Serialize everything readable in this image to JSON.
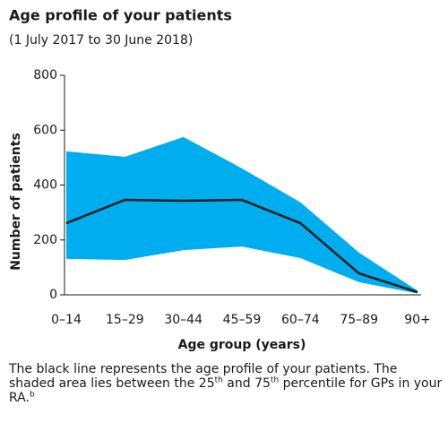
{
  "chart_data": {
    "type": "line",
    "title": "Age profile of your patients",
    "subtitle": "(1 July 2017 to 30 June 2018)",
    "x_label": "Age group (years)",
    "y_label": "Number of patients",
    "categories": [
      "0–14",
      "15–29",
      "30–44",
      "45–59",
      "60–74",
      "75–89",
      "90+"
    ],
    "series": [
      {
        "color": "#1a1a1a",
        "values": [
          261,
          346,
          343,
          346,
          261,
          78,
          10
        ]
      }
    ],
    "band": {
      "color": "#00aeef",
      "lower": [
        131,
        127,
        163,
        176,
        134,
        46,
        5
      ],
      "upper": [
        523,
        503,
        575,
        461,
        337,
        154,
        15
      ]
    },
    "ylim": [
      0,
      800
    ],
    "yticks": [
      0,
      200,
      400,
      600,
      800
    ],
    "grid": false
  },
  "note": {
    "text1": "The black line represents the age profile of your patients. The shaded area lies between the 25",
    "sup1": "th",
    "text2": " and 75",
    "sup2": "th",
    "text3": " percentile for GPs in your RA.",
    "sup3": "b"
  }
}
